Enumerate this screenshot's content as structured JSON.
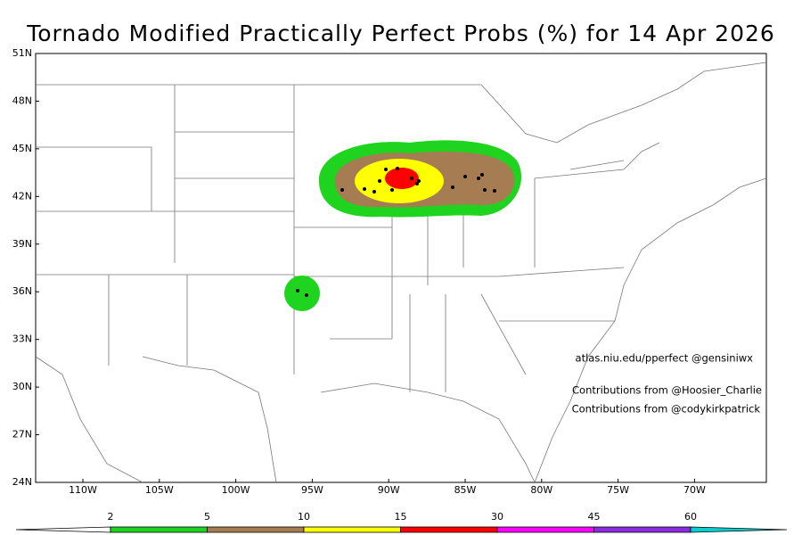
{
  "title": "Tornado Modified Practically Perfect Probs (%) for 14 Apr 2026",
  "lat_labels": [
    "51N",
    "48N",
    "45N",
    "42N",
    "39N",
    "36N",
    "33N",
    "30N",
    "27N",
    "24N"
  ],
  "lon_labels": [
    "110W",
    "105W",
    "100W",
    "95W",
    "90W",
    "85W",
    "80W",
    "75W",
    "70W"
  ],
  "credits": [
    "atlas.niu.edu/pperfect @gensiniwx",
    "Contributions from @Hoosier_Charlie",
    "Contributions from @codykirkpatrick"
  ],
  "colorbar": {
    "levels": [
      2,
      5,
      10,
      15,
      30,
      45,
      60
    ],
    "colors": [
      "#ffffff",
      "#1ed41e",
      "#a67c52",
      "#ffff00",
      "#ff0000",
      "#ff00ff",
      "#8a2be2",
      "#00d0d0"
    ]
  }
}
